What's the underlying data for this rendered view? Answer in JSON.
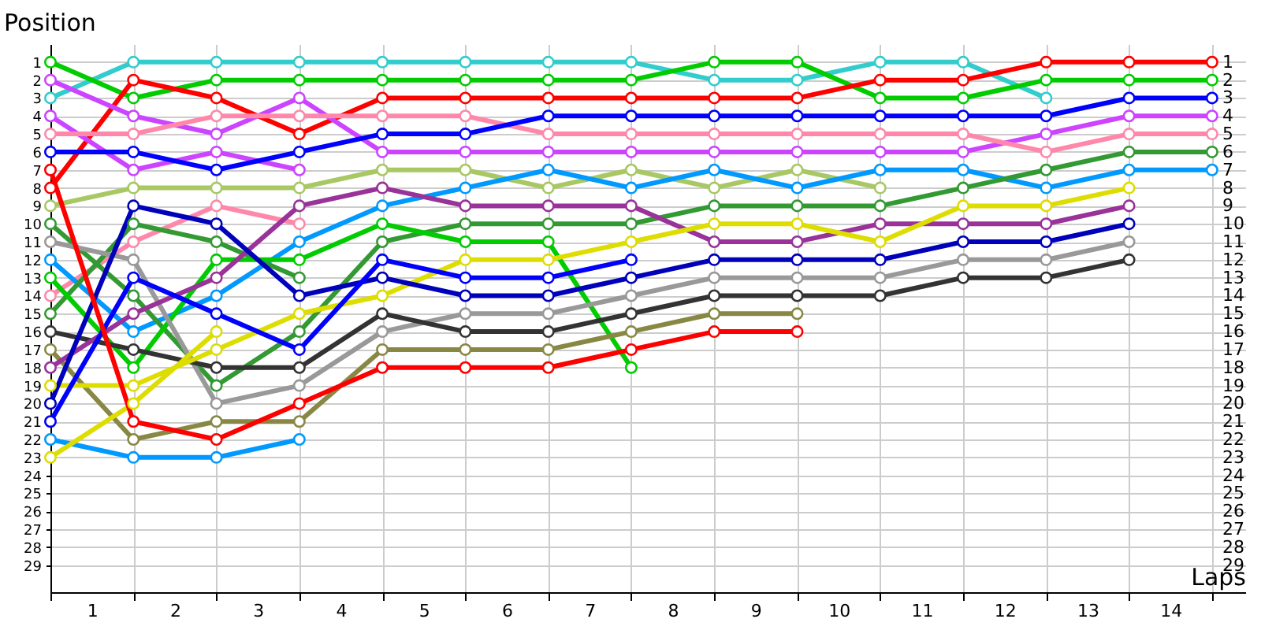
{
  "chart_data": {
    "type": "line",
    "xlabel": "Laps",
    "ylabel": "Position",
    "marker": "circle",
    "line_style": "solid",
    "grid": true,
    "x": [
      0,
      1,
      2,
      3,
      4,
      5,
      6,
      7,
      8,
      9,
      10,
      11,
      12,
      13,
      14
    ],
    "xlim": [
      0,
      14.4
    ],
    "xticks": [
      {
        "value": 0,
        "label": null
      },
      {
        "value": 0.5,
        "label": "1"
      },
      {
        "value": 1,
        "label": null
      },
      {
        "value": 1.5,
        "label": "2"
      },
      {
        "value": 2,
        "label": null
      },
      {
        "value": 2.5,
        "label": "3"
      },
      {
        "value": 3,
        "label": null
      },
      {
        "value": 3.5,
        "label": "4"
      },
      {
        "value": 4,
        "label": null
      },
      {
        "value": 4.5,
        "label": "5"
      },
      {
        "value": 5,
        "label": null
      },
      {
        "value": 5.5,
        "label": "6"
      },
      {
        "value": 6,
        "label": null
      },
      {
        "value": 6.5,
        "label": "7"
      },
      {
        "value": 7,
        "label": null
      },
      {
        "value": 7.5,
        "label": "8"
      },
      {
        "value": 8,
        "label": null
      },
      {
        "value": 8.5,
        "label": "9"
      },
      {
        "value": 9,
        "label": null
      },
      {
        "value": 9.5,
        "label": "10"
      },
      {
        "value": 10,
        "label": null
      },
      {
        "value": 10.5,
        "label": "11"
      },
      {
        "value": 11,
        "label": null
      },
      {
        "value": 11.5,
        "label": "12"
      },
      {
        "value": 12,
        "label": null
      },
      {
        "value": 12.5,
        "label": "13"
      },
      {
        "value": 13,
        "label": null
      },
      {
        "value": 13.5,
        "label": "14"
      },
      {
        "value": 14,
        "label": null
      }
    ],
    "ylim": [
      30.5,
      0
    ],
    "yticks": [
      1,
      2,
      3,
      4,
      5,
      6,
      7,
      8,
      9,
      10,
      11,
      12,
      13,
      14,
      15,
      16,
      17,
      18,
      19,
      20,
      21,
      22,
      23,
      24,
      25,
      26,
      27,
      28,
      29
    ],
    "y2lim": [
      30.5,
      0
    ],
    "y2ticks": [
      1,
      2,
      3,
      4,
      5,
      6,
      7,
      8,
      9,
      10,
      11,
      12,
      13,
      14,
      15,
      16,
      17,
      18,
      19,
      20,
      21,
      22,
      23,
      24,
      25,
      26,
      27,
      28,
      29
    ],
    "series": [
      {
        "color": "#33cccc",
        "values": [
          3,
          1,
          1,
          1,
          1,
          1,
          1,
          1,
          2,
          2,
          1,
          1,
          3,
          null,
          null
        ]
      },
      {
        "color": "#00cc00",
        "values": [
          1,
          3,
          2,
          2,
          2,
          2,
          2,
          2,
          1,
          1,
          3,
          3,
          2,
          2,
          2
        ]
      },
      {
        "color": "#ff0000",
        "values": [
          8,
          2,
          3,
          5,
          3,
          3,
          3,
          3,
          3,
          3,
          2,
          2,
          1,
          1,
          1
        ]
      },
      {
        "color": "#cc44ff",
        "values": [
          2,
          4,
          5,
          3,
          6,
          6,
          6,
          6,
          6,
          6,
          6,
          6,
          5,
          4,
          4
        ]
      },
      {
        "color": "#cc44ff",
        "values": [
          4,
          7,
          6,
          7,
          null,
          null,
          null,
          null,
          null,
          null,
          null,
          null,
          null,
          null,
          null
        ]
      },
      {
        "color": "#ff88aa",
        "values": [
          5,
          5,
          4,
          4,
          4,
          4,
          5,
          5,
          5,
          5,
          5,
          5,
          6,
          5,
          5
        ]
      },
      {
        "color": "#ff88aa",
        "values": [
          14,
          11,
          9,
          10,
          null,
          null,
          null,
          null,
          null,
          null,
          null,
          null,
          null,
          null,
          null
        ]
      },
      {
        "color": "#0000ff",
        "values": [
          6,
          6,
          7,
          6,
          5,
          5,
          4,
          4,
          4,
          4,
          4,
          4,
          4,
          3,
          3
        ]
      },
      {
        "color": "#a8c864",
        "values": [
          9,
          8,
          8,
          8,
          7,
          7,
          8,
          7,
          8,
          7,
          8,
          null,
          null,
          null,
          null
        ]
      },
      {
        "color": "#0099ff",
        "values": [
          12,
          16,
          14,
          11,
          9,
          8,
          7,
          8,
          7,
          8,
          7,
          7,
          8,
          7,
          7
        ]
      },
      {
        "color": "#0099ff",
        "values": [
          22,
          23,
          23,
          22,
          null,
          null,
          null,
          null,
          null,
          null,
          null,
          null,
          null,
          null,
          null
        ]
      },
      {
        "color": "#339933",
        "values": [
          10,
          14,
          19,
          16,
          11,
          10,
          10,
          10,
          9,
          9,
          9,
          8,
          7,
          6,
          6
        ]
      },
      {
        "color": "#339933",
        "values": [
          15,
          10,
          11,
          13,
          null,
          null,
          null,
          null,
          null,
          null,
          null,
          null,
          null,
          null,
          null
        ]
      },
      {
        "color": "#00cc00",
        "values": [
          13,
          18,
          12,
          12,
          10,
          11,
          11,
          18,
          null,
          null,
          null,
          null,
          null,
          null,
          null
        ]
      },
      {
        "color": "#999999",
        "values": [
          11,
          12,
          20,
          19,
          16,
          15,
          15,
          14,
          13,
          13,
          13,
          12,
          12,
          11,
          null
        ]
      },
      {
        "color": "#333333",
        "values": [
          16,
          17,
          18,
          18,
          15,
          16,
          16,
          15,
          14,
          14,
          14,
          13,
          13,
          12,
          null
        ]
      },
      {
        "color": "#888844",
        "values": [
          17,
          22,
          21,
          21,
          17,
          17,
          17,
          16,
          15,
          15,
          null,
          null,
          null,
          null,
          null
        ]
      },
      {
        "color": "#993399",
        "values": [
          18,
          15,
          13,
          9,
          8,
          9,
          9,
          9,
          11,
          11,
          10,
          10,
          10,
          9,
          null
        ]
      },
      {
        "color": "#dddd00",
        "values": [
          19,
          19,
          17,
          15,
          14,
          12,
          12,
          11,
          10,
          10,
          11,
          9,
          9,
          8,
          null
        ]
      },
      {
        "color": "#dddd00",
        "values": [
          23,
          20,
          16,
          null,
          null,
          null,
          null,
          null,
          null,
          null,
          null,
          null,
          null,
          null,
          null
        ]
      },
      {
        "color": "#0000bb",
        "values": [
          20,
          9,
          10,
          14,
          13,
          14,
          14,
          13,
          12,
          12,
          12,
          11,
          11,
          10,
          null
        ]
      },
      {
        "color": "#0000ff",
        "values": [
          21,
          13,
          15,
          17,
          12,
          13,
          13,
          12,
          null,
          null,
          null,
          null,
          null,
          null,
          null
        ]
      },
      {
        "color": "#ff0000",
        "values": [
          7,
          21,
          22,
          20,
          18,
          18,
          18,
          17,
          16,
          16,
          null,
          null,
          null,
          null,
          null
        ]
      }
    ]
  }
}
